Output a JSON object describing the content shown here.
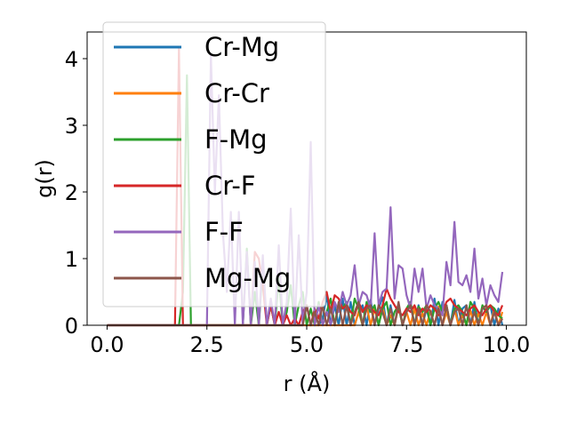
{
  "chart_data": {
    "type": "line",
    "title": "",
    "xlabel": "r (Å)",
    "ylabel": "g(r)",
    "xlim": [
      -0.5,
      10.5
    ],
    "ylim": [
      0,
      4.4
    ],
    "xticks": [
      0.0,
      2.5,
      5.0,
      7.5,
      10.0
    ],
    "xtick_labels": [
      "0.0",
      "2.5",
      "5.0",
      "7.5",
      "10.0"
    ],
    "yticks": [
      0,
      1,
      2,
      3,
      4
    ],
    "ytick_labels": [
      "0",
      "1",
      "2",
      "3",
      "4"
    ],
    "grid": false,
    "legend": {
      "placement": "upper-left",
      "entries": [
        "Cr-Mg",
        "Cr-Cr",
        "F-Mg",
        "Cr-F",
        "F-F",
        "Mg-Mg"
      ]
    },
    "x": [
      0.0,
      0.1,
      0.2,
      0.3,
      0.4,
      0.5,
      0.6,
      0.7,
      0.8,
      0.9,
      1.0,
      1.1,
      1.2,
      1.3,
      1.4,
      1.5,
      1.6,
      1.7,
      1.8,
      1.9,
      2.0,
      2.1,
      2.2,
      2.3,
      2.4,
      2.5,
      2.6,
      2.7,
      2.8,
      2.9,
      3.0,
      3.1,
      3.2,
      3.3,
      3.4,
      3.5,
      3.6,
      3.7,
      3.8,
      3.9,
      4.0,
      4.1,
      4.2,
      4.3,
      4.4,
      4.5,
      4.6,
      4.7,
      4.8,
      4.9,
      5.0,
      5.1,
      5.2,
      5.3,
      5.4,
      5.5,
      5.6,
      5.7,
      5.8,
      5.9,
      6.0,
      6.1,
      6.2,
      6.3,
      6.4,
      6.5,
      6.6,
      6.7,
      6.8,
      6.9,
      7.0,
      7.1,
      7.2,
      7.3,
      7.4,
      7.5,
      7.6,
      7.7,
      7.8,
      7.9,
      8.0,
      8.1,
      8.2,
      8.3,
      8.4,
      8.5,
      8.6,
      8.7,
      8.8,
      8.9,
      9.0,
      9.1,
      9.2,
      9.3,
      9.4,
      9.5,
      9.6,
      9.7,
      9.8,
      9.9
    ],
    "series": [
      {
        "name": "Cr-Mg",
        "color": "#1f77b4",
        "values": [
          0,
          0,
          0,
          0,
          0,
          0,
          0,
          0,
          0,
          0,
          0,
          0,
          0,
          0,
          0,
          0,
          0,
          0,
          0,
          0,
          0,
          0,
          0,
          0,
          0,
          0,
          0,
          0,
          0,
          0,
          0,
          0,
          0,
          0,
          0,
          0,
          0,
          0,
          0,
          0,
          0,
          0,
          0,
          0,
          0,
          0,
          0,
          0,
          0,
          0,
          0,
          0,
          0,
          0,
          0.1,
          0.45,
          0,
          0.3,
          0,
          0.4,
          0,
          0.35,
          0,
          0.2,
          0.3,
          0,
          0.38,
          0,
          0.25,
          0.42,
          0,
          0.3,
          0,
          0.28,
          0,
          0.22,
          0.35,
          0,
          0.3,
          0,
          0.25,
          0,
          0.4,
          0,
          0.35,
          0.2,
          0,
          0.38,
          0,
          0.25,
          0.3,
          0,
          0.35,
          0,
          0.28,
          0.2,
          0.3,
          0,
          0.25,
          0
        ]
      },
      {
        "name": "Cr-Cr",
        "color": "#ff7f0e",
        "values": [
          0,
          0,
          0,
          0,
          0,
          0,
          0,
          0,
          0,
          0,
          0,
          0,
          0,
          0,
          0,
          0,
          0,
          0,
          0,
          0,
          0,
          0,
          0,
          0,
          0,
          0,
          0,
          0,
          0,
          0,
          0,
          0,
          0,
          0,
          0,
          0,
          0,
          0,
          0,
          0,
          0,
          0,
          0,
          0,
          0,
          0,
          0,
          0,
          0,
          0,
          0,
          0,
          0,
          0,
          0,
          0,
          0,
          0,
          0,
          0,
          0,
          0,
          0,
          0.2,
          0,
          0.3,
          0,
          0.25,
          0,
          0.28,
          0,
          0.15,
          0,
          0.3,
          0,
          0.2,
          0,
          0.25,
          0,
          0.18,
          0,
          0.22,
          0,
          0.28,
          0,
          0.2,
          0,
          0.25,
          0,
          0.15,
          0,
          0.22,
          0,
          0.18,
          0,
          0.2,
          0,
          0.25,
          0,
          0.2
        ]
      },
      {
        "name": "F-Mg",
        "color": "#2ca02c",
        "values": [
          0,
          0,
          0,
          0,
          0,
          0,
          0,
          0,
          0,
          0,
          0,
          0,
          0,
          0,
          0,
          0,
          0,
          0,
          0,
          0.5,
          3.75,
          0,
          0,
          0,
          0,
          0,
          0,
          0,
          0,
          0,
          0,
          0,
          0,
          0,
          0,
          1.15,
          0,
          0.5,
          0,
          0.9,
          0,
          0.3,
          0,
          0.7,
          0,
          0.2,
          0.6,
          0,
          0.3,
          0.5,
          0,
          0.25,
          0,
          0.35,
          0,
          0.2,
          0.4,
          0,
          0.3,
          0.25,
          0.35,
          0,
          0.4,
          0.25,
          0,
          0.35,
          0.2,
          0.3,
          0,
          0.25,
          0.35,
          0,
          0.2,
          0.3,
          0,
          0.25,
          0.35,
          0,
          0.28,
          0.2,
          0.3,
          0,
          0.25,
          0.35,
          0.2,
          0.3,
          0,
          0.25,
          0.3,
          0.2,
          0,
          0.35,
          0.25,
          0,
          0.3,
          0.2,
          0.3,
          0.25,
          0.15,
          0.1
        ]
      },
      {
        "name": "Cr-F",
        "color": "#d62728",
        "values": [
          0,
          0,
          0,
          0,
          0,
          0,
          0,
          0,
          0,
          0,
          0,
          0,
          0,
          0,
          0,
          0,
          0,
          0,
          4.15,
          0,
          0,
          0,
          0,
          0,
          0,
          0,
          0,
          0,
          0,
          0,
          0,
          0,
          0,
          0,
          0,
          0,
          0,
          1.1,
          1.0,
          0.6,
          0,
          0.3,
          0,
          0.2,
          0,
          0.15,
          0,
          0.1,
          0,
          0.2,
          0.3,
          0,
          0.25,
          0.1,
          0.35,
          0.5,
          0.2,
          0.45,
          0.4,
          0.25,
          0.3,
          0.2,
          0.15,
          0.35,
          0.2,
          0.3,
          0.25,
          0.2,
          0.15,
          0.3,
          0.55,
          0.4,
          0.3,
          0.2,
          0.15,
          0.25,
          0.2,
          0.3,
          0.15,
          0.25,
          0.2,
          0.3,
          0.25,
          0.15,
          0.2,
          0.35,
          0.4,
          0.3,
          0.25,
          0.2,
          0.15,
          0.25,
          0.3,
          0.2,
          0.15,
          0.25,
          0.3,
          0.2,
          0.15,
          0.3
        ]
      },
      {
        "name": "F-F",
        "color": "#9467bd",
        "values": [
          0,
          0,
          0,
          0,
          0,
          0,
          0,
          0,
          0,
          0,
          0,
          0,
          0,
          0,
          0,
          0,
          0,
          0,
          0,
          0,
          0,
          0,
          0,
          0,
          0,
          0,
          4.05,
          2.0,
          3.45,
          1.4,
          0.5,
          1.7,
          0,
          1.7,
          0,
          1.1,
          0,
          0.95,
          0,
          1.05,
          0,
          0.4,
          0,
          1.2,
          0,
          0.35,
          1.75,
          0,
          1.35,
          0,
          0.5,
          2.75,
          0,
          0.3,
          0,
          0.2,
          0,
          0.35,
          0.2,
          0.5,
          0.3,
          0.45,
          0.9,
          0.3,
          0.5,
          0.45,
          0.25,
          1.38,
          0.3,
          0.5,
          0.55,
          1.77,
          0.4,
          0.9,
          0.85,
          0.45,
          0.25,
          0.85,
          0.5,
          0.85,
          0.25,
          0.45,
          0.3,
          0.25,
          0.15,
          0.95,
          0.6,
          1.55,
          0.65,
          0.6,
          0.75,
          0.5,
          1.15,
          0.4,
          0.7,
          0.3,
          0.6,
          0.45,
          0.35,
          0.8
        ]
      },
      {
        "name": "Mg-Mg",
        "color": "#8c564b",
        "values": [
          0,
          0,
          0,
          0,
          0,
          0,
          0,
          0,
          0,
          0,
          0,
          0,
          0,
          0,
          0,
          0,
          0,
          0,
          0,
          0,
          0,
          0,
          0,
          0,
          0,
          0,
          0,
          0,
          0,
          0,
          0,
          0,
          0,
          0,
          0,
          0,
          0,
          0,
          0,
          0,
          0,
          0,
          0,
          0,
          0,
          0,
          0,
          0,
          0,
          0,
          0.3,
          0,
          0.2,
          0,
          0.3,
          0,
          0.25,
          0,
          0.35,
          0,
          0.3,
          0,
          0.2,
          0.35,
          0,
          0.25,
          0.3,
          0,
          0.3,
          0.2,
          0,
          0.25,
          0,
          0.35,
          0,
          0.2,
          0.3,
          0,
          0.25,
          0,
          0.3,
          0.2,
          0,
          0.25,
          0,
          0.3,
          0,
          0.2,
          0.25,
          0,
          0.3,
          0,
          0.2,
          0,
          0.25,
          0.3,
          0,
          0.2,
          0,
          0.1
        ]
      }
    ]
  }
}
